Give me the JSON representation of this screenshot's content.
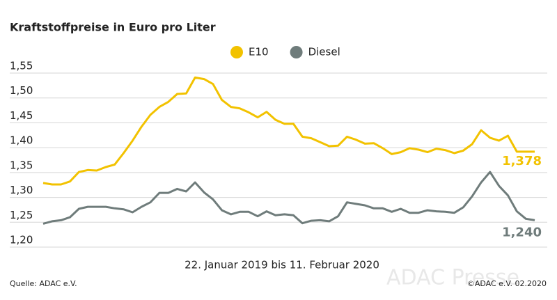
{
  "chart_data": {
    "type": "line",
    "title": "Kraftstoffpreise in Euro pro Liter",
    "x_label": "22. Januar 2019 bis 11. Februar 2020",
    "source": "Quelle: ADAC e.V.",
    "copyright": "©ADAC e.V. 02.2020",
    "watermark": "ADAC Presse",
    "ylim": [
      1.2,
      1.55
    ],
    "yticks": [
      {
        "value": 1.2,
        "label": "1,20"
      },
      {
        "value": 1.25,
        "label": "1,25"
      },
      {
        "value": 1.3,
        "label": "1,30"
      },
      {
        "value": 1.35,
        "label": "1,35"
      },
      {
        "value": 1.4,
        "label": "1,40"
      },
      {
        "value": 1.45,
        "label": "1,45"
      },
      {
        "value": 1.5,
        "label": "1,50"
      },
      {
        "value": 1.55,
        "label": "1,55"
      }
    ],
    "grid": true,
    "legend": "top",
    "series": [
      {
        "name": "E10",
        "color": "#f2c200",
        "values": [
          1.315,
          1.312,
          1.312,
          1.318,
          1.337,
          1.341,
          1.34,
          1.347,
          1.352,
          1.375,
          1.4,
          1.428,
          1.452,
          1.468,
          1.478,
          1.494,
          1.495,
          1.527,
          1.524,
          1.514,
          1.482,
          1.468,
          1.465,
          1.457,
          1.447,
          1.458,
          1.442,
          1.434,
          1.434,
          1.408,
          1.405,
          1.397,
          1.389,
          1.39,
          1.408,
          1.402,
          1.394,
          1.395,
          1.385,
          1.373,
          1.377,
          1.385,
          1.382,
          1.377,
          1.384,
          1.381,
          1.375,
          1.38,
          1.393,
          1.421,
          1.406,
          1.4,
          1.41,
          1.378,
          1.378,
          1.378
        ],
        "value_labels": [
          null,
          null,
          null,
          null,
          null,
          null,
          null,
          null,
          null,
          null,
          null,
          null,
          null,
          null,
          null,
          null,
          null,
          null,
          null,
          null,
          null,
          null,
          null,
          null,
          null,
          null,
          null,
          null,
          null,
          null,
          null,
          null,
          null,
          null,
          null,
          null,
          null,
          null,
          null,
          null,
          null,
          null,
          null,
          null,
          null,
          null,
          null,
          null,
          null,
          null,
          null,
          null,
          null,
          null,
          null,
          "1,378"
        ]
      },
      {
        "name": "Diesel",
        "color": "#6f7c7b",
        "values": [
          1.233,
          1.238,
          1.24,
          1.246,
          1.263,
          1.267,
          1.267,
          1.267,
          1.264,
          1.262,
          1.256,
          1.267,
          1.276,
          1.295,
          1.295,
          1.303,
          1.298,
          1.316,
          1.296,
          1.282,
          1.26,
          1.252,
          1.257,
          1.257,
          1.248,
          1.258,
          1.25,
          1.252,
          1.25,
          1.234,
          1.239,
          1.24,
          1.238,
          1.248,
          1.276,
          1.273,
          1.27,
          1.264,
          1.264,
          1.257,
          1.263,
          1.255,
          1.255,
          1.26,
          1.258,
          1.257,
          1.255,
          1.266,
          1.288,
          1.316,
          1.337,
          1.309,
          1.29,
          1.258,
          1.243,
          1.24
        ],
        "value_labels": [
          null,
          null,
          null,
          null,
          null,
          null,
          null,
          null,
          null,
          null,
          null,
          null,
          null,
          null,
          null,
          null,
          null,
          null,
          null,
          null,
          null,
          null,
          null,
          null,
          null,
          null,
          null,
          null,
          null,
          null,
          null,
          null,
          null,
          null,
          null,
          null,
          null,
          null,
          null,
          null,
          null,
          null,
          null,
          null,
          null,
          null,
          null,
          null,
          null,
          null,
          null,
          null,
          null,
          null,
          null,
          "1,240"
        ]
      }
    ]
  }
}
